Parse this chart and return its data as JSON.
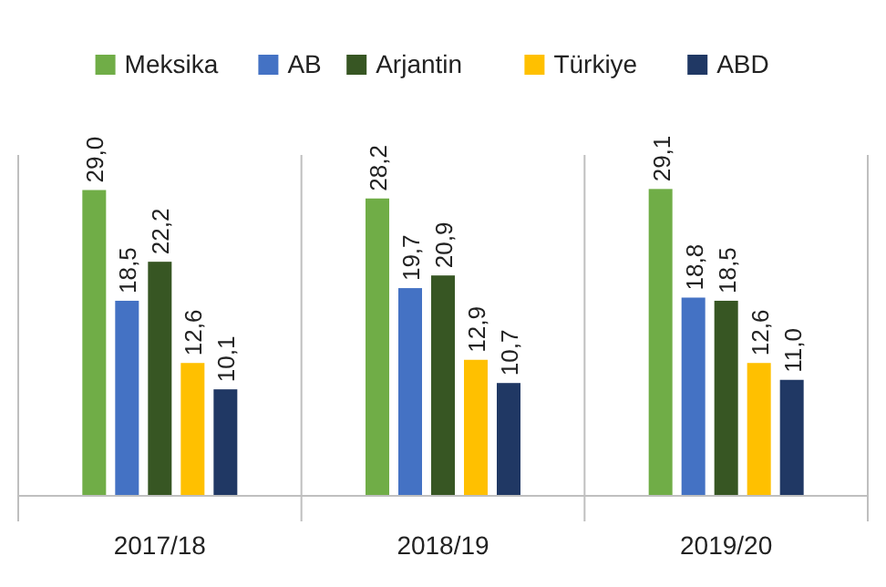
{
  "chart_data": {
    "type": "bar",
    "categories": [
      "2017/18",
      "2018/19",
      "2019/20"
    ],
    "series": [
      {
        "name": "Meksika",
        "color": "#70ad47",
        "values": [
          29.0,
          28.2,
          29.1
        ],
        "value_labels": [
          "29,0",
          "28,2",
          "29,1"
        ]
      },
      {
        "name": "AB",
        "color": "#4472c4",
        "values": [
          18.5,
          19.7,
          18.8
        ],
        "value_labels": [
          "18,5",
          "19,7",
          "18,8"
        ]
      },
      {
        "name": "Arjantin",
        "color": "#375623",
        "values": [
          22.2,
          20.9,
          18.5
        ],
        "value_labels": [
          "22,2",
          "20,9",
          "18,5"
        ]
      },
      {
        "name": "Türkiye",
        "color": "#ffc000",
        "values": [
          12.6,
          12.9,
          12.6
        ],
        "value_labels": [
          "12,6",
          "12,9",
          "12,6"
        ]
      },
      {
        "name": "ABD",
        "color": "#203864",
        "values": [
          10.1,
          10.7,
          11.0
        ],
        "value_labels": [
          "10,1",
          "10,7",
          "11,0"
        ]
      }
    ],
    "legend": "top",
    "grid": false
  }
}
